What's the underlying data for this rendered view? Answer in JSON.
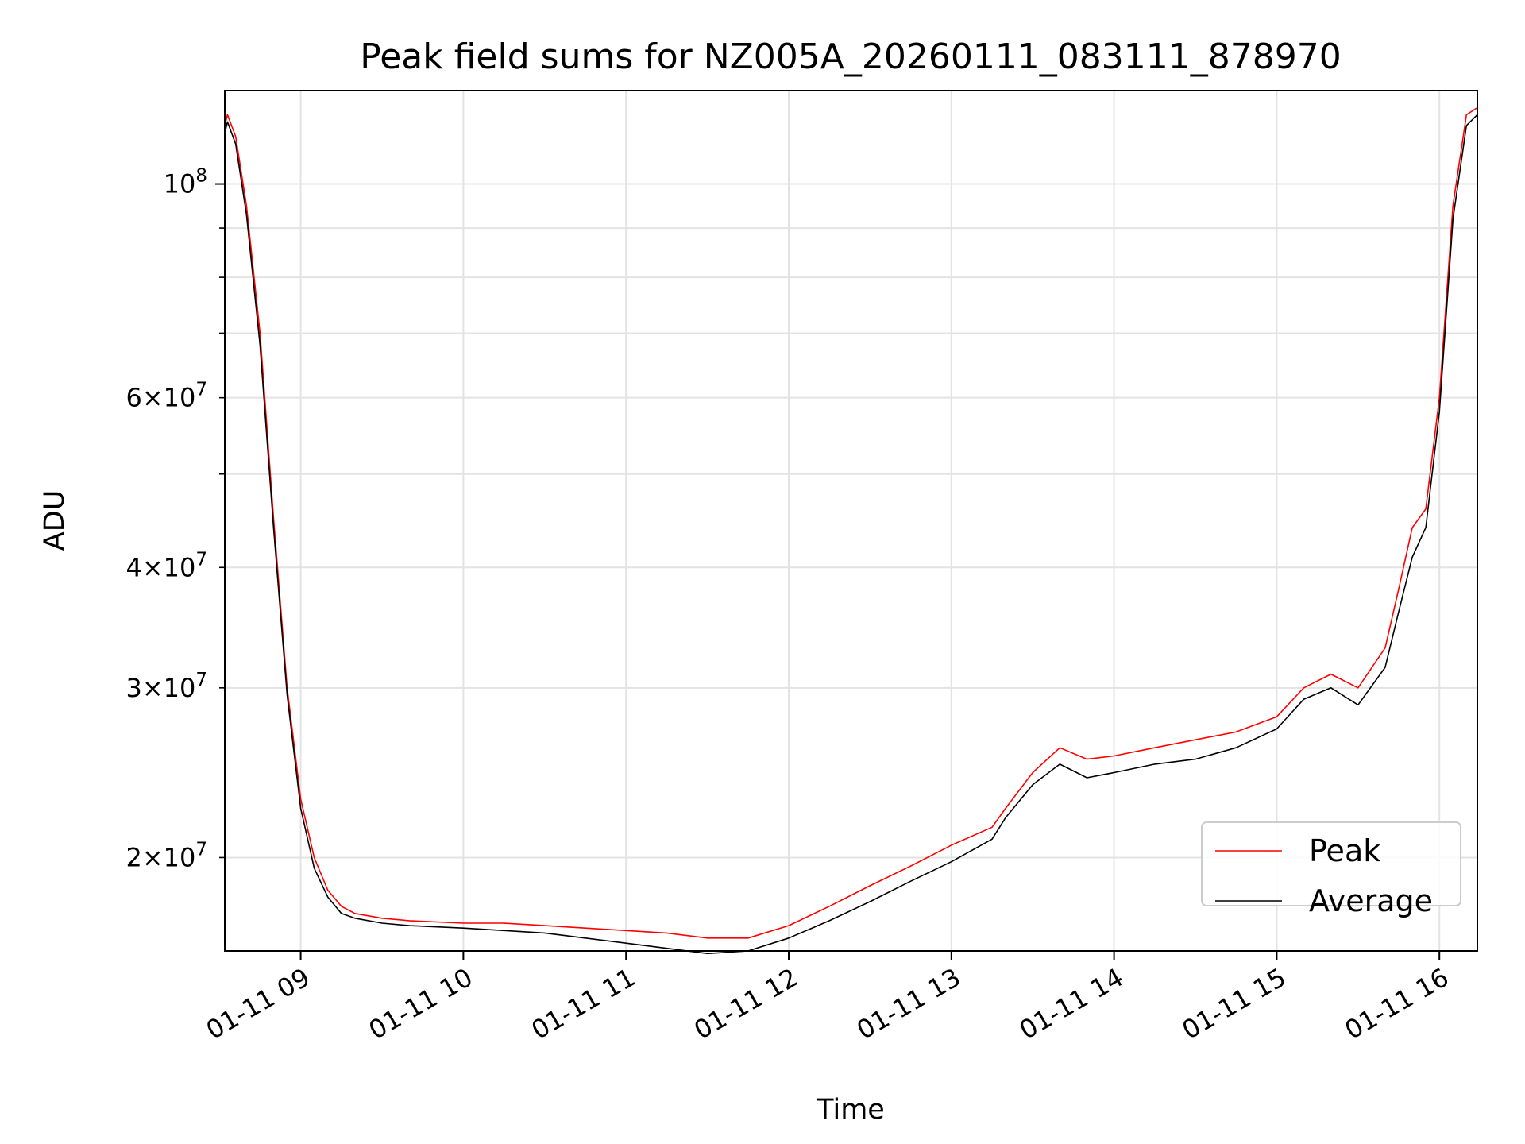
{
  "chart_data": {
    "type": "line",
    "title": "Peak field sums for NZ005A_20260111_083111_878970",
    "xlabel": "Time",
    "ylabel": "ADU",
    "y_scale": "log",
    "grid": true,
    "legend_position": "lower-right",
    "xlim": [
      "2026-01-11 08:32",
      "2026-01-11 16:14"
    ],
    "ylim": [
      16000000,
      125000000
    ],
    "x_ticks": [
      "2026-01-11 09:00",
      "2026-01-11 10:00",
      "2026-01-11 11:00",
      "2026-01-11 12:00",
      "2026-01-11 13:00",
      "2026-01-11 14:00",
      "2026-01-11 15:00",
      "2026-01-11 16:00"
    ],
    "x_tick_labels": [
      "01-11 09",
      "01-11 10",
      "01-11 11",
      "01-11 12",
      "01-11 13",
      "01-11 14",
      "01-11 15",
      "01-11 16"
    ],
    "y_major_ticks": [
      {
        "value": 100000000,
        "base": "10",
        "exp": "8"
      }
    ],
    "y_minor_ticks": [
      {
        "value": 20000000,
        "mant": "2",
        "base": "10",
        "exp": "7"
      },
      {
        "value": 30000000,
        "mant": "3",
        "base": "10",
        "exp": "7"
      },
      {
        "value": 40000000,
        "mant": "4",
        "base": "10",
        "exp": "7"
      },
      {
        "value": 60000000,
        "mant": "6",
        "base": "10",
        "exp": "7"
      }
    ],
    "y_unlabeled_minor_ticks": [
      50000000,
      70000000,
      80000000,
      90000000
    ],
    "series": [
      {
        "name": "Peak",
        "color": "#ff0000",
        "x": [
          "2026-01-11 08:32",
          "2026-01-11 08:33",
          "2026-01-11 08:36",
          "2026-01-11 08:40",
          "2026-01-11 08:45",
          "2026-01-11 08:50",
          "2026-01-11 08:55",
          "2026-01-11 09:00",
          "2026-01-11 09:05",
          "2026-01-11 09:10",
          "2026-01-11 09:15",
          "2026-01-11 09:20",
          "2026-01-11 09:30",
          "2026-01-11 09:40",
          "2026-01-11 10:00",
          "2026-01-11 10:15",
          "2026-01-11 10:30",
          "2026-01-11 10:45",
          "2026-01-11 11:00",
          "2026-01-11 11:15",
          "2026-01-11 11:30",
          "2026-01-11 11:45",
          "2026-01-11 12:00",
          "2026-01-11 12:15",
          "2026-01-11 12:30",
          "2026-01-11 12:45",
          "2026-01-11 13:00",
          "2026-01-11 13:15",
          "2026-01-11 13:20",
          "2026-01-11 13:30",
          "2026-01-11 13:40",
          "2026-01-11 13:50",
          "2026-01-11 14:00",
          "2026-01-11 14:15",
          "2026-01-11 14:30",
          "2026-01-11 14:45",
          "2026-01-11 15:00",
          "2026-01-11 15:10",
          "2026-01-11 15:20",
          "2026-01-11 15:30",
          "2026-01-11 15:40",
          "2026-01-11 15:45",
          "2026-01-11 15:50",
          "2026-01-11 15:55",
          "2026-01-11 16:00",
          "2026-01-11 16:05",
          "2026-01-11 16:10",
          "2026-01-11 16:14"
        ],
        "y": [
          115000000,
          118000000,
          112000000,
          95000000,
          70000000,
          45000000,
          30000000,
          23000000,
          20000000,
          18500000,
          17800000,
          17500000,
          17300000,
          17200000,
          17100000,
          17100000,
          17000000,
          16900000,
          16800000,
          16700000,
          16500000,
          16500000,
          17000000,
          17800000,
          18700000,
          19600000,
          20600000,
          21500000,
          22500000,
          24500000,
          26000000,
          25300000,
          25500000,
          26000000,
          26500000,
          27000000,
          28000000,
          30000000,
          31000000,
          30000000,
          33000000,
          38000000,
          44000000,
          46000000,
          60000000,
          95000000,
          118000000,
          120000000
        ]
      },
      {
        "name": "Average",
        "color": "#000000",
        "x": [
          "2026-01-11 08:32",
          "2026-01-11 08:33",
          "2026-01-11 08:36",
          "2026-01-11 08:40",
          "2026-01-11 08:45",
          "2026-01-11 08:50",
          "2026-01-11 08:55",
          "2026-01-11 09:00",
          "2026-01-11 09:05",
          "2026-01-11 09:10",
          "2026-01-11 09:15",
          "2026-01-11 09:20",
          "2026-01-11 09:30",
          "2026-01-11 09:40",
          "2026-01-11 10:00",
          "2026-01-11 10:15",
          "2026-01-11 10:30",
          "2026-01-11 10:45",
          "2026-01-11 11:00",
          "2026-01-11 11:15",
          "2026-01-11 11:30",
          "2026-01-11 11:45",
          "2026-01-11 12:00",
          "2026-01-11 12:15",
          "2026-01-11 12:30",
          "2026-01-11 12:45",
          "2026-01-11 13:00",
          "2026-01-11 13:15",
          "2026-01-11 13:20",
          "2026-01-11 13:30",
          "2026-01-11 13:40",
          "2026-01-11 13:50",
          "2026-01-11 14:00",
          "2026-01-11 14:15",
          "2026-01-11 14:30",
          "2026-01-11 14:45",
          "2026-01-11 15:00",
          "2026-01-11 15:10",
          "2026-01-11 15:20",
          "2026-01-11 15:30",
          "2026-01-11 15:40",
          "2026-01-11 15:45",
          "2026-01-11 15:50",
          "2026-01-11 15:55",
          "2026-01-11 16:00",
          "2026-01-11 16:05",
          "2026-01-11 16:10",
          "2026-01-11 16:14"
        ],
        "y": [
          113000000,
          116000000,
          110000000,
          93000000,
          68000000,
          44000000,
          29500000,
          22500000,
          19500000,
          18200000,
          17500000,
          17300000,
          17100000,
          17000000,
          16900000,
          16800000,
          16700000,
          16500000,
          16300000,
          16100000,
          15900000,
          16000000,
          16500000,
          17200000,
          18000000,
          18900000,
          19800000,
          20900000,
          22000000,
          23800000,
          25000000,
          24200000,
          24500000,
          25000000,
          25300000,
          26000000,
          27200000,
          29200000,
          30000000,
          28800000,
          31500000,
          36000000,
          41000000,
          44000000,
          58000000,
          92000000,
          115000000,
          118000000
        ]
      }
    ]
  }
}
